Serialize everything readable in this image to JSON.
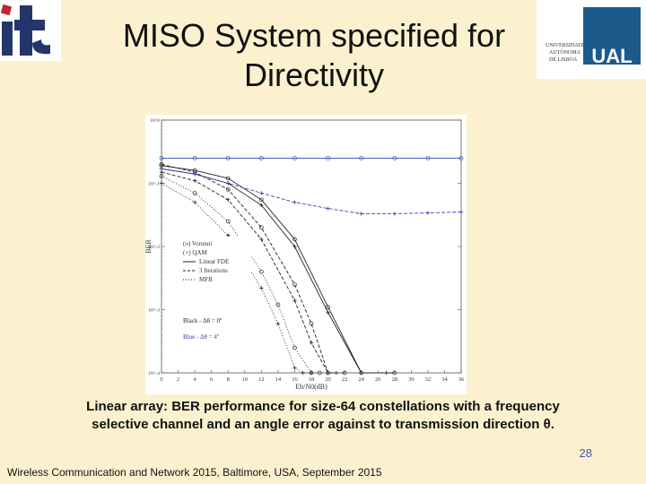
{
  "slide": {
    "title_line1": "MISO System specified for",
    "title_line2": "Directivity",
    "caption_line1": "Linear array: BER performance for size-64 constellations with a frequency",
    "caption_line2": "selective channel and an angle error against to transmission direction θ.",
    "page_number": "28",
    "footer": "Wireless Communication and Network 2015, Baltimore, USA, September 2015",
    "logo_left_text": "it",
    "logo_right_text": "UAL",
    "logo_right_sub": [
      "UNIVERSIDADE",
      "AUTÓNOMA",
      "DE LISBOA"
    ]
  },
  "colors": {
    "background": "#fbf1ce",
    "black_curves": "#222222",
    "blue_curves": "#3344aa",
    "logo_red": "#c0282d",
    "logo_navy": "#23356a",
    "ual_blue": "#1d5a8c"
  },
  "chart_data": {
    "type": "line",
    "xlabel": "Eb/N0(dB)",
    "ylabel": "BER",
    "xlim": [
      0,
      36
    ],
    "ylim_log10": [
      -4,
      0
    ],
    "xticks": [
      "0",
      "2",
      "4",
      "6",
      "8",
      "10",
      "12",
      "14",
      "16",
      "18",
      "20",
      "22",
      "24",
      "26",
      "28",
      "30",
      "32",
      "34",
      "36"
    ],
    "yticks": [
      "10^0",
      "10^-1",
      "10^-2",
      "10^-3",
      "10^-4"
    ],
    "legend": [
      {
        "marker": "o",
        "label": "(o) Voronoi"
      },
      {
        "marker": "+",
        "label": "(+) QAM"
      },
      {
        "style": "solid",
        "label": "Linear FDE"
      },
      {
        "style": "dashed",
        "label": "3 Iterations"
      },
      {
        "style": "dotted",
        "label": "MFB"
      }
    ],
    "annotations": [
      "Black - Δθ = 0º",
      "Blue - Δθ = 4º"
    ],
    "series": [
      {
        "group": "Black - Δθ = 0º",
        "style": "solid",
        "marker": "o",
        "x": [
          0,
          4,
          8,
          12,
          16,
          20,
          24,
          28
        ],
        "y": [
          0.19,
          0.16,
          0.12,
          0.055,
          0.013,
          0.0011,
          7e-05,
          0.0001
        ]
      },
      {
        "group": "Black - Δθ = 0º",
        "style": "solid",
        "marker": "+",
        "x": [
          0,
          4,
          8,
          12,
          16,
          20,
          24,
          27
        ],
        "y": [
          0.17,
          0.14,
          0.1,
          0.045,
          0.01,
          0.0009,
          6e-05,
          0.0001
        ]
      },
      {
        "group": "Black - Δθ = 0º",
        "style": "dashed",
        "marker": "o",
        "x": [
          0,
          4,
          8,
          12,
          16,
          18,
          20,
          22
        ],
        "y": [
          0.2,
          0.15,
          0.08,
          0.02,
          0.0025,
          0.0006,
          8e-05,
          0.0001
        ]
      },
      {
        "group": "Black - Δθ = 0º",
        "style": "dashed",
        "marker": "+",
        "x": [
          0,
          4,
          8,
          12,
          16,
          18,
          20,
          21
        ],
        "y": [
          0.15,
          0.11,
          0.055,
          0.013,
          0.0014,
          0.0003,
          7e-05,
          0.0001
        ]
      },
      {
        "group": "Black - Δθ = 0º",
        "style": "dotted",
        "marker": "o",
        "x": [
          0,
          4,
          8,
          12,
          14,
          16,
          18,
          19
        ],
        "y": [
          0.13,
          0.07,
          0.025,
          0.004,
          0.0012,
          0.00025,
          5e-05,
          0.0001
        ]
      },
      {
        "group": "Black - Δθ = 0º",
        "style": "dotted",
        "marker": "+",
        "x": [
          0,
          4,
          8,
          12,
          14,
          16,
          17,
          18
        ],
        "y": [
          0.1,
          0.05,
          0.015,
          0.0022,
          0.0006,
          0.00012,
          6e-05,
          0.0001
        ]
      },
      {
        "group": "Blue - Δθ = 4º",
        "style": "solid",
        "marker": "o",
        "x": [
          0,
          4,
          8,
          12,
          16,
          20,
          24,
          28,
          32,
          36
        ],
        "y": [
          0.25,
          0.25,
          0.25,
          0.25,
          0.25,
          0.25,
          0.25,
          0.25,
          0.25,
          0.25
        ]
      },
      {
        "group": "Blue - Δθ = 4º",
        "style": "dashed",
        "marker": "+",
        "x": [
          0,
          4,
          8,
          12,
          16,
          20,
          24,
          28,
          32,
          36
        ],
        "y": [
          0.17,
          0.14,
          0.1,
          0.07,
          0.05,
          0.04,
          0.033,
          0.033,
          0.034,
          0.035
        ]
      }
    ]
  }
}
